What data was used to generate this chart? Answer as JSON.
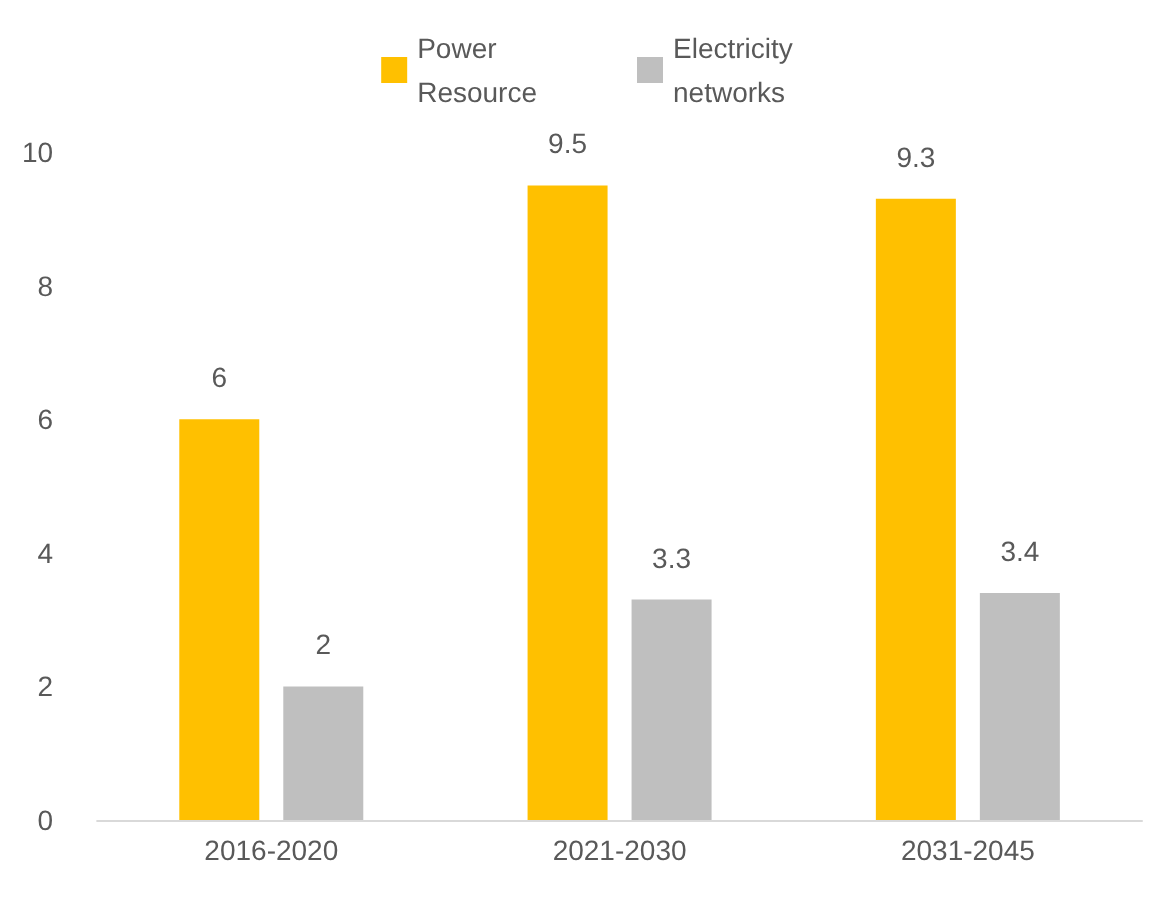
{
  "chart_data": {
    "type": "bar",
    "categories": [
      "2016-2020",
      "2021-2030",
      "2031-2045"
    ],
    "series": [
      {
        "name": "Power\nResource",
        "color": "#ffc000",
        "values": [
          6,
          9.5,
          9.3
        ]
      },
      {
        "name": "Electricity\nnetworks",
        "color": "#bfbfbf",
        "values": [
          2,
          3.3,
          3.4
        ]
      }
    ],
    "ylim": [
      0,
      10
    ],
    "yticks": [
      0,
      2,
      4,
      6,
      8,
      10
    ],
    "grid": false,
    "legend": "top",
    "data_labels": true
  }
}
